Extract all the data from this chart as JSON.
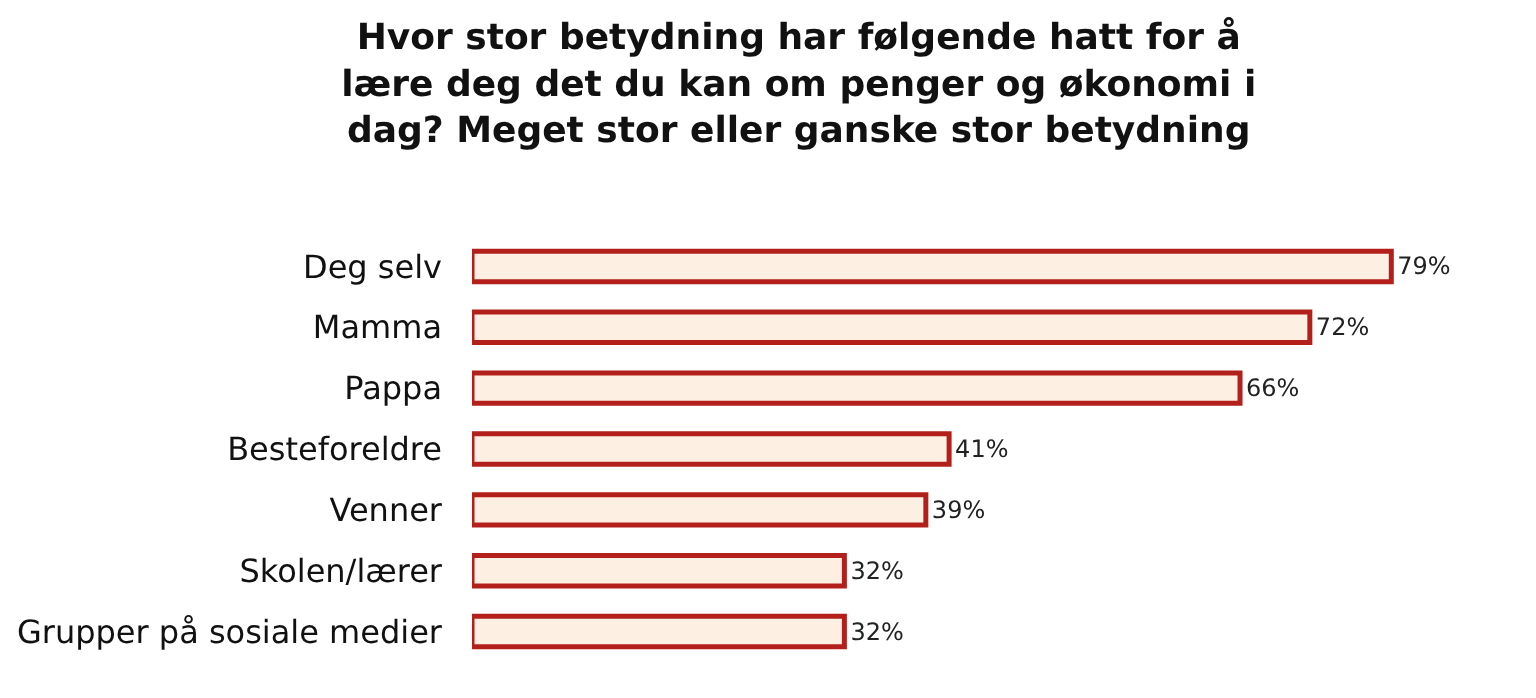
{
  "chart_data": {
    "type": "bar",
    "orientation": "horizontal",
    "title": "Hvor stor betydning har følgende hatt for å\nlære deg det du kan om penger og økonomi i\ndag? Meget stor eller ganske stor betydning",
    "categories": [
      "Deg selv",
      "Mamma",
      "Pappa",
      "Besteforeldre",
      "Venner",
      "Skolen/lærer",
      "Grupper på sosiale medier"
    ],
    "values": [
      79,
      72,
      66,
      41,
      39,
      32,
      32
    ],
    "value_labels": [
      "79%",
      "72%",
      "66%",
      "41%",
      "39%",
      "32%",
      "32%"
    ],
    "color": "#fdf0e3",
    "grid": false,
    "legend": false
  }
}
